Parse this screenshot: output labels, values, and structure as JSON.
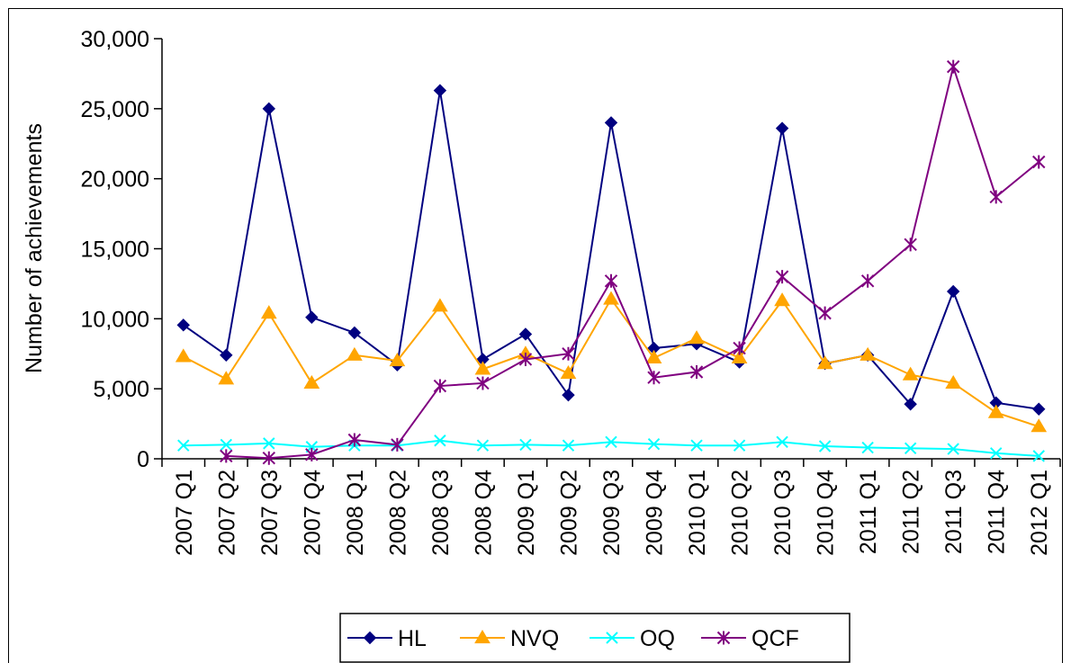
{
  "chart_data": {
    "type": "line",
    "title": "",
    "xlabel": "",
    "ylabel": "Number of achievements",
    "ylim": [
      0,
      30000
    ],
    "yticks": [
      0,
      5000,
      10000,
      15000,
      20000,
      25000,
      30000
    ],
    "ytick_labels": [
      "0",
      "5,000",
      "10,000",
      "15,000",
      "20,000",
      "25,000",
      "30,000"
    ],
    "grid": false,
    "legend_position": "bottom",
    "categories": [
      "2007 Q1",
      "2007 Q2",
      "2007 Q3",
      "2007 Q4",
      "2008 Q1",
      "2008 Q2",
      "2008 Q3",
      "2008 Q4",
      "2009 Q1",
      "2009 Q2",
      "2009 Q3",
      "2009 Q4",
      "2010 Q1",
      "2010 Q2",
      "2010 Q3",
      "2010 Q4",
      "2011 Q1",
      "2011 Q2",
      "2011 Q3",
      "2011 Q4",
      "2012 Q1"
    ],
    "series": [
      {
        "name": "HL",
        "color": "#000080",
        "marker": "diamond",
        "values": [
          9550,
          7400,
          25000,
          10100,
          9000,
          6700,
          26300,
          7100,
          8900,
          4550,
          24000,
          7900,
          8200,
          6900,
          23600,
          6800,
          7400,
          3900,
          11950,
          4000,
          3550
        ]
      },
      {
        "name": "NVQ",
        "color": "#FFA500",
        "marker": "triangle",
        "values": [
          7300,
          5700,
          10400,
          5400,
          7400,
          7000,
          10900,
          6400,
          7500,
          6100,
          11400,
          7200,
          8600,
          7200,
          11300,
          6800,
          7400,
          6000,
          5400,
          3300,
          2300
        ]
      },
      {
        "name": "OQ",
        "color": "#00FFFF",
        "marker": "x",
        "values": [
          950,
          1000,
          1100,
          850,
          950,
          950,
          1300,
          950,
          1000,
          950,
          1200,
          1050,
          950,
          950,
          1200,
          900,
          800,
          750,
          700,
          400,
          200
        ]
      },
      {
        "name": "QCF",
        "color": "#800080",
        "marker": "star",
        "values": [
          null,
          200,
          50,
          300,
          1350,
          1000,
          5200,
          5400,
          7100,
          7500,
          12700,
          5800,
          6200,
          7900,
          13000,
          10400,
          12700,
          15300,
          28000,
          18700,
          21200
        ]
      }
    ]
  }
}
